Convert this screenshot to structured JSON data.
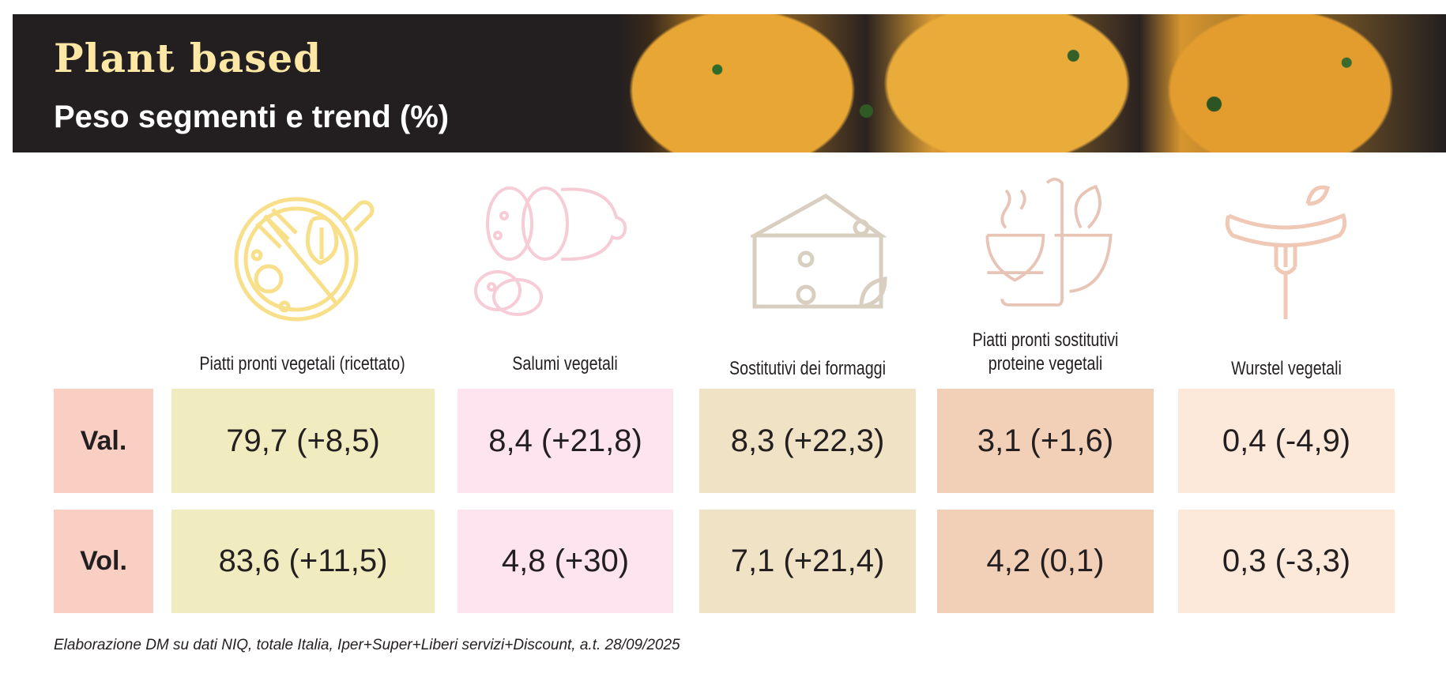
{
  "header": {
    "title": "Plant based",
    "subtitle": "Peso segmenti e trend (%)"
  },
  "columns": [
    {
      "label": "Piatti pronti vegetali (ricettato)",
      "icon": "plate-fork-icon",
      "color": "#f1ecc0",
      "icon_color": "#f8df8a"
    },
    {
      "label": "Salumi vegetali",
      "icon": "salami-icon",
      "color": "#fde4ef",
      "icon_color": "#f6ccd6"
    },
    {
      "label": "Sostitutivi dei formaggi",
      "icon": "cheese-icon",
      "color": "#f0e2c4",
      "icon_color": "#d9cfc0"
    },
    {
      "label_lines": [
        "Piatti pronti sostitutivi",
        "proteine vegetali"
      ],
      "icon": "soup-bowl-icon",
      "color": "#f2d0b8",
      "icon_color": "#e8c4b6"
    },
    {
      "label": "Wurstel vegetali",
      "icon": "sausage-fork-icon",
      "color": "#fde9d9",
      "icon_color": "#f0c8b6"
    }
  ],
  "rows": [
    {
      "label": "Val.",
      "values": [
        "79,7 (+8,5)",
        "8,4 (+21,8)",
        "8,3 (+22,3)",
        "3,1 (+1,6)",
        "0,4 (-4,9)"
      ]
    },
    {
      "label": "Vol.",
      "values": [
        "83,6 (+11,5)",
        "4,8 (+30)",
        "7,1 (+21,4)",
        "4,2 (0,1)",
        "0,3 (-3,3)"
      ]
    }
  ],
  "footer": "Elaborazione DM su dati NIQ, totale Italia, Iper+Super+Liberi servizi+Discount, a.t. 28/09/2025"
}
